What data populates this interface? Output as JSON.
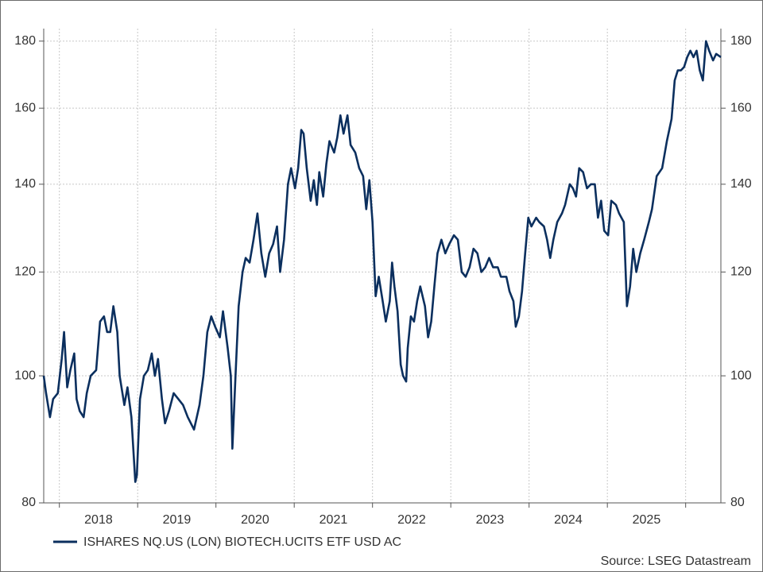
{
  "chart_data": {
    "type": "line",
    "log_y": true,
    "grid": true,
    "source": "Source: LSEG Datastream",
    "xlim": [
      2017.8,
      2026.45
    ],
    "ylim": [
      80,
      184
    ],
    "xticks": [
      2018,
      2019,
      2020,
      2021,
      2022,
      2023,
      2024,
      2025,
      {
        "value": 2026,
        "label": null
      }
    ],
    "yticks": [
      80,
      100,
      120,
      140,
      160,
      180
    ],
    "x": [
      2017.8,
      2017.83,
      2017.88,
      2017.92,
      2017.98,
      2018.03,
      2018.06,
      2018.1,
      2018.14,
      2018.19,
      2018.22,
      2018.26,
      2018.31,
      2018.35,
      2018.4,
      2018.47,
      2018.52,
      2018.57,
      2018.61,
      2018.65,
      2018.69,
      2018.74,
      2018.77,
      2018.83,
      2018.87,
      2018.92,
      2018.97,
      2018.99,
      2019.03,
      2019.08,
      2019.13,
      2019.18,
      2019.22,
      2019.26,
      2019.31,
      2019.35,
      2019.4,
      2019.46,
      2019.52,
      2019.58,
      2019.64,
      2019.72,
      2019.79,
      2019.84,
      2019.89,
      2019.94,
      2019.99,
      2020.05,
      2020.09,
      2020.15,
      2020.19,
      2020.21,
      2020.25,
      2020.29,
      2020.34,
      2020.38,
      2020.43,
      2020.48,
      2020.53,
      2020.58,
      2020.63,
      2020.68,
      2020.73,
      2020.78,
      2020.82,
      2020.87,
      2020.92,
      2020.96,
      2021.01,
      2021.05,
      2021.09,
      2021.12,
      2021.16,
      2021.21,
      2021.25,
      2021.29,
      2021.32,
      2021.37,
      2021.41,
      2021.45,
      2021.51,
      2021.55,
      2021.59,
      2021.63,
      2021.68,
      2021.72,
      2021.78,
      2021.83,
      2021.88,
      2021.92,
      2021.96,
      2022.0,
      2022.04,
      2022.08,
      2022.13,
      2022.17,
      2022.22,
      2022.25,
      2022.28,
      2022.32,
      2022.36,
      2022.39,
      2022.43,
      2022.45,
      2022.49,
      2022.53,
      2022.57,
      2022.61,
      2022.67,
      2022.71,
      2022.75,
      2022.79,
      2022.83,
      2022.88,
      2022.93,
      2022.98,
      2023.04,
      2023.09,
      2023.14,
      2023.19,
      2023.24,
      2023.29,
      2023.34,
      2023.39,
      2023.44,
      2023.49,
      2023.54,
      2023.6,
      2023.64,
      2023.71,
      2023.75,
      2023.8,
      2023.83,
      2023.87,
      2023.91,
      2023.95,
      2023.99,
      2024.03,
      2024.09,
      2024.13,
      2024.19,
      2024.23,
      2024.27,
      2024.31,
      2024.36,
      2024.42,
      2024.46,
      2024.52,
      2024.56,
      2024.6,
      2024.64,
      2024.69,
      2024.74,
      2024.79,
      2024.84,
      2024.88,
      2024.92,
      2024.96,
      2025.01,
      2025.05,
      2025.11,
      2025.15,
      2025.21,
      2025.25,
      2025.29,
      2025.33,
      2025.37,
      2025.42,
      2025.47,
      2025.53,
      2025.57,
      2025.63,
      2025.7,
      2025.76,
      2025.82,
      2025.86,
      2025.9,
      2025.94,
      2025.98,
      2026.02,
      2026.06,
      2026.1,
      2026.14,
      2026.18,
      2026.22,
      2026.26,
      2026.3,
      2026.35,
      2026.39,
      2026.45
    ],
    "series": [
      {
        "name": "ISHARES NQ.US (LON) BIOTECH.UCITS ETF USD AC",
        "color": "#0b2f5e",
        "values": [
          100,
          97,
          93,
          96,
          97,
          103,
          108,
          98,
          101,
          104,
          96,
          94,
          93,
          97,
          100,
          101,
          110,
          111,
          108,
          108,
          113,
          108,
          100,
          95,
          98,
          93,
          83,
          84,
          96,
          100,
          101,
          104,
          100,
          103,
          96,
          92,
          94,
          97,
          96,
          95,
          93,
          91,
          95,
          100,
          108,
          111,
          109,
          107,
          112,
          105,
          100,
          88,
          100,
          113,
          120,
          123,
          122,
          127,
          133,
          124,
          119,
          124,
          126,
          130,
          120,
          127,
          140,
          144,
          139,
          144,
          154,
          153,
          144,
          136,
          141,
          135,
          143,
          137,
          145,
          151,
          148,
          152,
          158,
          153,
          158,
          150,
          148,
          144,
          142,
          134,
          141,
          131,
          115,
          119,
          114,
          110,
          114,
          122,
          117,
          112,
          102,
          100,
          99,
          105,
          111,
          110,
          114,
          117,
          113,
          107,
          110,
          117,
          124,
          127,
          124,
          126,
          128,
          127,
          120,
          119,
          121,
          125,
          124,
          120,
          121,
          123,
          121,
          121,
          119,
          119,
          116,
          114,
          109,
          111,
          116,
          124,
          132,
          130,
          132,
          131,
          130,
          127,
          123,
          127,
          131,
          133,
          135,
          140,
          139,
          137,
          144,
          143,
          139,
          140,
          140,
          132,
          136,
          129,
          128,
          136,
          135,
          133,
          131,
          113,
          117,
          125,
          120,
          124,
          127,
          131,
          134,
          142,
          144,
          151,
          157,
          168,
          171,
          171,
          172,
          175,
          177,
          175,
          177,
          171,
          168,
          180,
          177,
          174,
          176,
          175
        ]
      }
    ]
  }
}
